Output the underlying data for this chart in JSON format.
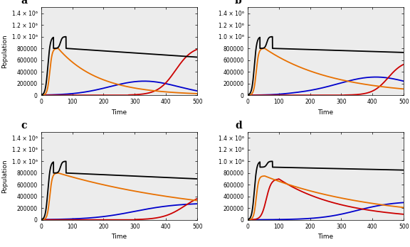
{
  "panels": [
    "a",
    "b",
    "c",
    "d"
  ],
  "t_max": 500,
  "t_points": 3000,
  "ylim": [
    0,
    1500000
  ],
  "yticks": [
    0,
    200000,
    400000,
    600000,
    800000,
    1000000,
    1200000,
    1400000
  ],
  "xlabel": "Time",
  "ylabel": "Population",
  "colors": {
    "black": "#000000",
    "orange": "#E87000",
    "blue": "#0000CC",
    "red": "#CC0000"
  },
  "bg_color": "#ECECEC",
  "label_fontsize": 9,
  "axis_fontsize": 6.5,
  "tick_fontsize": 5.5,
  "linewidth": 1.3
}
